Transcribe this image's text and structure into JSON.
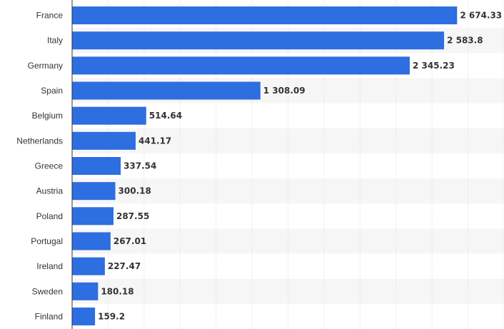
{
  "chart_data": {
    "type": "bar",
    "orientation": "horizontal",
    "title": "",
    "xlabel": "",
    "ylabel": "",
    "xlim": [
      0,
      3000
    ],
    "grid": true,
    "bar_color": "#2d6ee0",
    "band_color": "#f6f6f6",
    "grid_color": "#d9d9d9",
    "categories": [
      "France",
      "Italy",
      "Germany",
      "Spain",
      "Belgium",
      "Netherlands",
      "Greece",
      "Austria",
      "Poland",
      "Portugal",
      "Ireland",
      "Sweden",
      "Finland"
    ],
    "values": [
      2674.33,
      2583.8,
      2345.23,
      1308.09,
      514.64,
      441.17,
      337.54,
      300.18,
      287.55,
      267.01,
      227.47,
      180.18,
      159.2
    ],
    "value_labels": [
      "2 674.33",
      "2 583.8",
      "2 345.23",
      "1 308.09",
      "514.64",
      "441.17",
      "337.54",
      "300.18",
      "287.55",
      "267.01",
      "227.47",
      "180.18",
      "159.2"
    ]
  }
}
